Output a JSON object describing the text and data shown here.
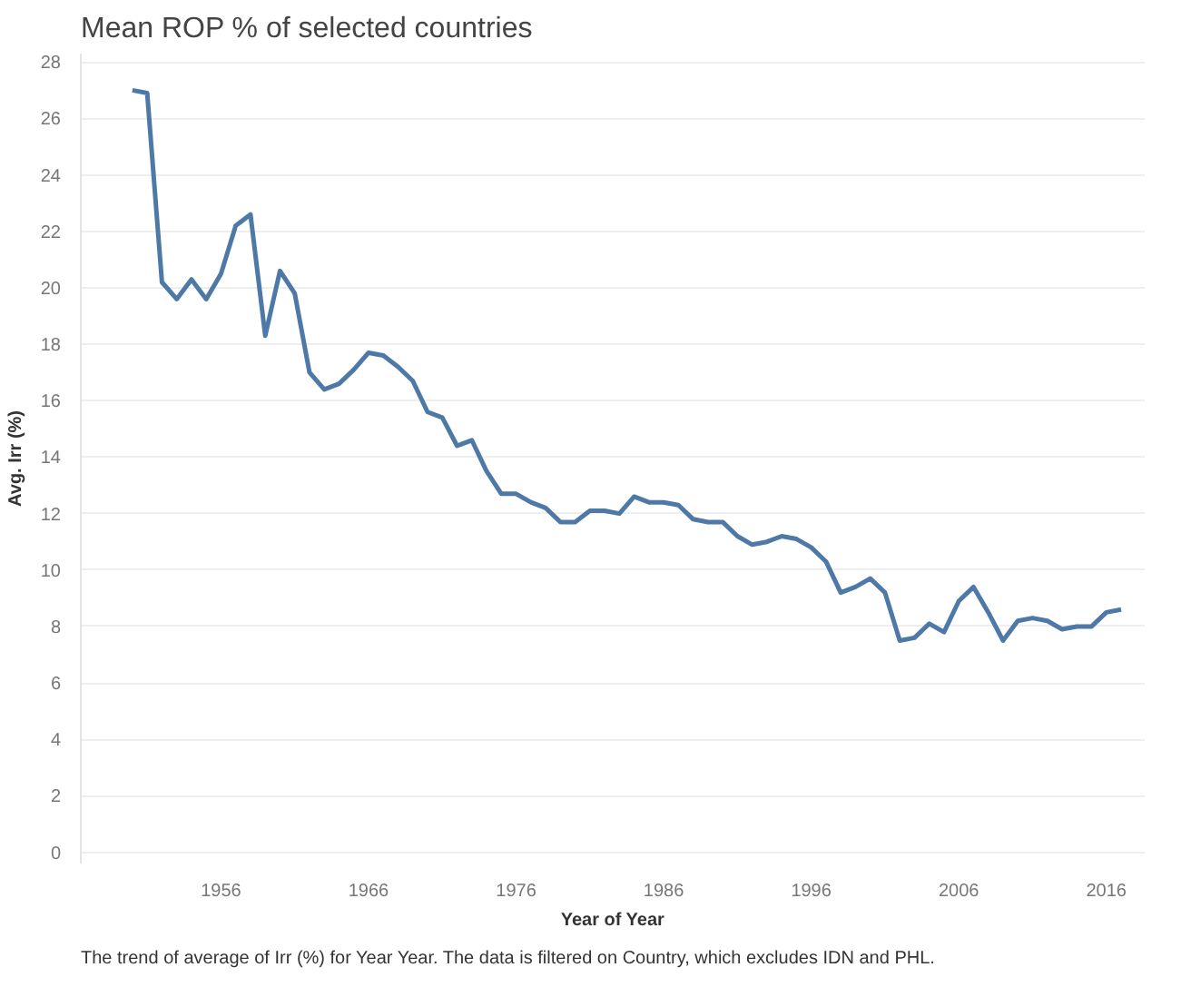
{
  "chart_data": {
    "type": "line",
    "title": "Mean ROP % of selected countries",
    "xlabel": "Year of Year",
    "ylabel": "Avg. Irr (%)",
    "annotations": [
      "The trend of average of Irr (%) for Year Year. The data is filtered on Country, which excludes IDN and PHL."
    ],
    "x": [
      1950,
      1951,
      1952,
      1953,
      1954,
      1955,
      1956,
      1957,
      1958,
      1959,
      1960,
      1961,
      1962,
      1963,
      1964,
      1965,
      1966,
      1967,
      1968,
      1969,
      1970,
      1971,
      1972,
      1973,
      1974,
      1975,
      1976,
      1977,
      1978,
      1979,
      1980,
      1981,
      1982,
      1983,
      1984,
      1985,
      1986,
      1987,
      1988,
      1989,
      1990,
      1991,
      1992,
      1993,
      1994,
      1995,
      1996,
      1997,
      1998,
      1999,
      2000,
      2001,
      2002,
      2003,
      2004,
      2005,
      2006,
      2007,
      2008,
      2009,
      2010,
      2011,
      2012,
      2013,
      2014,
      2015,
      2016,
      2017
    ],
    "series": [
      {
        "color": "#4e79a7",
        "values": [
          27.0,
          26.9,
          20.2,
          19.6,
          20.3,
          19.6,
          20.5,
          22.2,
          22.6,
          18.3,
          20.6,
          19.8,
          17.0,
          16.4,
          16.6,
          17.1,
          17.7,
          17.6,
          17.2,
          16.7,
          15.6,
          15.4,
          14.4,
          14.6,
          13.5,
          12.7,
          12.7,
          12.4,
          12.2,
          11.7,
          11.7,
          12.1,
          12.1,
          12.0,
          12.6,
          12.4,
          12.4,
          12.3,
          11.8,
          11.7,
          11.7,
          11.2,
          10.9,
          11.0,
          11.2,
          11.1,
          10.8,
          10.3,
          9.2,
          9.4,
          9.7,
          9.2,
          7.5,
          7.6,
          8.1,
          7.8,
          8.9,
          9.4,
          8.5,
          7.5,
          8.2,
          8.3,
          8.2,
          7.9,
          8.0,
          8.0,
          8.5,
          8.6
        ]
      }
    ],
    "xlim": [
      1946.5,
      2018.6
    ],
    "ylim": [
      -0.4,
      28.3
    ],
    "xticks": [
      1956,
      1966,
      1976,
      1986,
      1996,
      2006,
      2016
    ],
    "yticks": [
      0,
      2,
      4,
      6,
      8,
      10,
      12,
      14,
      16,
      18,
      20,
      22,
      24,
      26,
      28
    ],
    "grid": "y",
    "marker": "none",
    "line_style": "solid"
  }
}
